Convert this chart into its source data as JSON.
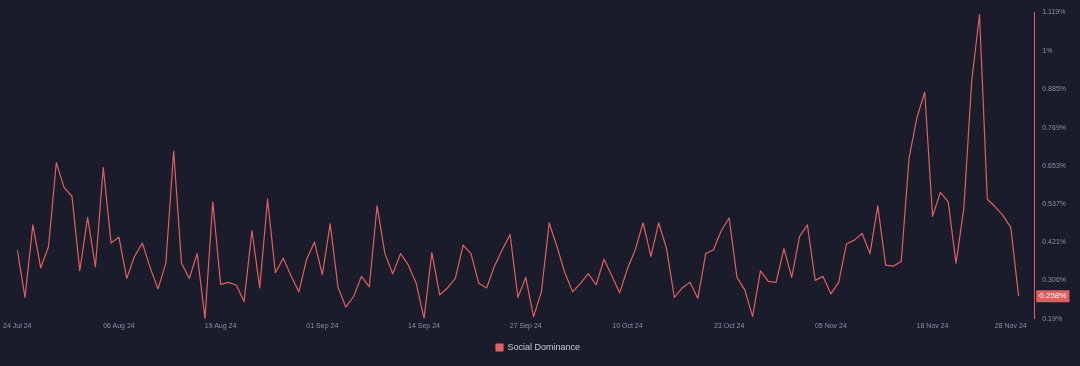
{
  "chart_data": {
    "type": "line",
    "x": [
      "--07-24",
      "--07-25",
      "--07-26",
      "--07-27",
      "--07-28",
      "--07-29",
      "--07-30",
      "--07-31",
      "--08-01",
      "--08-02",
      "--08-03",
      "--08-04",
      "--08-05",
      "--08-06",
      "--08-07",
      "--08-08",
      "--08-09",
      "--08-10",
      "--08-11",
      "--08-12",
      "--08-13",
      "--08-14",
      "--08-15",
      "--08-16",
      "--08-17",
      "--08-18",
      "--08-19",
      "--08-20",
      "--08-21",
      "--08-22",
      "--08-23",
      "--08-24",
      "--08-25",
      "--08-26",
      "--08-27",
      "--08-28",
      "--08-29",
      "--08-30",
      "--08-31",
      "--09-01",
      "--09-02",
      "--09-03",
      "--09-04",
      "--09-05",
      "--09-06",
      "--09-07",
      "--09-08",
      "--09-09",
      "--09-10",
      "--09-11",
      "--09-12",
      "--09-13",
      "--09-14",
      "--09-15",
      "--09-16",
      "--09-17",
      "--09-18",
      "--09-19",
      "--09-20",
      "--09-21",
      "--09-22",
      "--09-23",
      "--09-24",
      "--09-25",
      "--09-26",
      "--09-27",
      "--09-28",
      "--09-29",
      "--09-30",
      "--10-01",
      "--10-02",
      "--10-03",
      "--10-04",
      "--10-05",
      "--10-06",
      "--10-07",
      "--10-08",
      "--10-09",
      "--10-10",
      "--10-11",
      "--10-12",
      "--10-13",
      "--10-14",
      "--10-15",
      "--10-16",
      "--10-17",
      "--10-18",
      "--10-19",
      "--10-20",
      "--10-21",
      "--10-22",
      "--10-23",
      "--10-24",
      "--10-25",
      "--10-26",
      "--10-27",
      "--10-28",
      "--10-29",
      "--10-30",
      "--10-31",
      "--11-01",
      "--11-02",
      "--11-03",
      "--11-04",
      "--11-05",
      "--11-06",
      "--11-07",
      "--11-08",
      "--11-09",
      "--11-10",
      "--11-11",
      "--11-12",
      "--11-13",
      "--11-14",
      "--11-15",
      "--11-16",
      "--11-17",
      "--11-18",
      "--11-19",
      "--11-20",
      "--11-21",
      "--11-22",
      "--11-23",
      "--11-24",
      "--11-25",
      "--11-26",
      "--11-27",
      "--11-28",
      "--11-29"
    ],
    "series": [
      {
        "name": "Social Dominance",
        "color": "#e0605f",
        "values": [
          0.399,
          0.254,
          0.474,
          0.344,
          0.408,
          0.663,
          0.587,
          0.561,
          0.335,
          0.497,
          0.347,
          0.648,
          0.419,
          0.437,
          0.312,
          0.379,
          0.419,
          0.344,
          0.28,
          0.358,
          0.698,
          0.358,
          0.312,
          0.387,
          0.19,
          0.544,
          0.294,
          0.3,
          0.292,
          0.242,
          0.457,
          0.283,
          0.552,
          0.329,
          0.373,
          0.32,
          0.271,
          0.37,
          0.422,
          0.323,
          0.477,
          0.286,
          0.225,
          0.257,
          0.318,
          0.286,
          0.532,
          0.387,
          0.326,
          0.387,
          0.352,
          0.297,
          0.19,
          0.39,
          0.262,
          0.283,
          0.312,
          0.413,
          0.387,
          0.297,
          0.283,
          0.349,
          0.399,
          0.445,
          0.254,
          0.315,
          0.196,
          0.271,
          0.48,
          0.408,
          0.329,
          0.271,
          0.297,
          0.326,
          0.292,
          0.37,
          0.32,
          0.268,
          0.341,
          0.399,
          0.48,
          0.379,
          0.48,
          0.402,
          0.254,
          0.283,
          0.3,
          0.251,
          0.387,
          0.399,
          0.457,
          0.495,
          0.315,
          0.277,
          0.196,
          0.335,
          0.303,
          0.3,
          0.402,
          0.315,
          0.439,
          0.474,
          0.306,
          0.318,
          0.265,
          0.3,
          0.416,
          0.428,
          0.448,
          0.387,
          0.532,
          0.352,
          0.349,
          0.364,
          0.677,
          0.799,
          0.877,
          0.5,
          0.573,
          0.544,
          0.358,
          0.524,
          0.909,
          1.112,
          0.552,
          0.529,
          0.503,
          0.466,
          0.258
        ]
      }
    ],
    "xlim": [
      "--07-24",
      "--12-01"
    ],
    "xticks": [
      {
        "value": "--07-24",
        "label": "24 Jul 24"
      },
      {
        "value": "--08-06",
        "label": "06 Aug 24"
      },
      {
        "value": "--08-19",
        "label": "19 Aug 24"
      },
      {
        "value": "--09-01",
        "label": "01 Sep 24"
      },
      {
        "value": "--09-14",
        "label": "14 Sep 24"
      },
      {
        "value": "--09-27",
        "label": "27 Sep 24"
      },
      {
        "value": "--10-10",
        "label": "10 Oct 24"
      },
      {
        "value": "--10-23",
        "label": "23 Oct 24"
      },
      {
        "value": "--11-05",
        "label": "05 Nov 24"
      },
      {
        "value": "--11-18",
        "label": "18 Nov 24"
      },
      {
        "value": "--11-28",
        "label": "28 Nov 24"
      }
    ],
    "ylim": [
      0.19,
      1.119
    ],
    "yticks": [
      {
        "value": 0.19,
        "label": "0.19%"
      },
      {
        "value": 0.306,
        "label": "0.306%"
      },
      {
        "value": 0.421,
        "label": "0.421%"
      },
      {
        "value": 0.537,
        "label": "0.537%"
      },
      {
        "value": 0.653,
        "label": "0.653%"
      },
      {
        "value": 0.769,
        "label": "0.769%"
      },
      {
        "value": 0.885,
        "label": "0.885%"
      },
      {
        "value": 1,
        "label": "1%"
      },
      {
        "value": 1.119,
        "label": "1.119%"
      }
    ],
    "annotations": [
      {
        "text": "0.258%",
        "x": "--11-29",
        "y": 0.258
      }
    ],
    "grid": false,
    "legend": "bottom"
  }
}
